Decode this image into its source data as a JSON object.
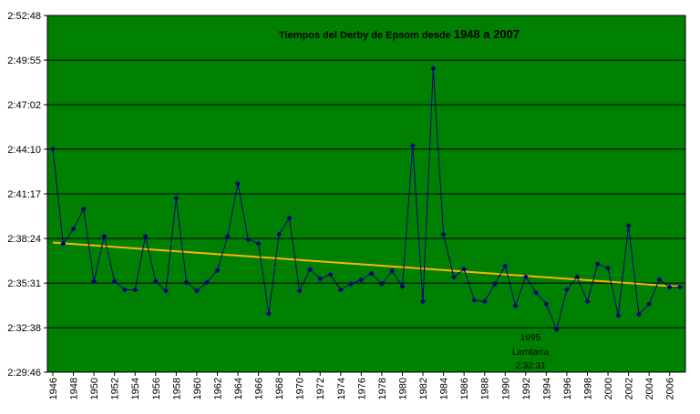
{
  "chart_data": {
    "type": "line",
    "title_part1": "Tiempos del Derby de Epsom desde ",
    "title_part2": "1948  a  2007",
    "y_tick_labels": [
      "2:29:46",
      "2:32:38",
      "2:35:31",
      "2:38:24",
      "2:41:17",
      "2:44:10",
      "2:47:02",
      "2:49:55",
      "2:52:48"
    ],
    "y_tick_seconds": [
      8986,
      9158,
      9331,
      9504,
      9677,
      9850,
      10022,
      10195,
      10368
    ],
    "ylim_seconds": [
      8986,
      10368
    ],
    "x_tick_labels": [
      "1946",
      "1948",
      "1950",
      "1952",
      "1954",
      "1956",
      "1958",
      "1960",
      "1962",
      "1964",
      "1966",
      "1968",
      "1970",
      "1972",
      "1974",
      "1976",
      "1978",
      "1980",
      "1982",
      "1984",
      "1986",
      "1988",
      "1990",
      "1992",
      "1994",
      "1996",
      "1998",
      "2000",
      "2002",
      "2004",
      "2006"
    ],
    "xlim": [
      1946,
      2007
    ],
    "grid": true,
    "colors": {
      "plot_background": "#008000",
      "series_line": "#000080",
      "trend_line": "#FFB400",
      "gridline": "#000000"
    },
    "series": [
      {
        "points": [
          [
            1946,
            9850
          ],
          [
            1947,
            9484
          ],
          [
            1948,
            9541
          ],
          [
            1949,
            9618
          ],
          [
            1950,
            9338
          ],
          [
            1951,
            9512
          ],
          [
            1952,
            9338
          ],
          [
            1953,
            9305
          ],
          [
            1954,
            9305
          ],
          [
            1955,
            9512
          ],
          [
            1956,
            9338
          ],
          [
            1957,
            9301
          ],
          [
            1958,
            9660
          ],
          [
            1959,
            9334
          ],
          [
            1960,
            9301
          ],
          [
            1961,
            9334
          ],
          [
            1962,
            9380
          ],
          [
            1963,
            9512
          ],
          [
            1964,
            9716
          ],
          [
            1965,
            9500
          ],
          [
            1966,
            9484
          ],
          [
            1967,
            9213
          ],
          [
            1968,
            9520
          ],
          [
            1969,
            9583
          ],
          [
            1970,
            9301
          ],
          [
            1971,
            9383
          ],
          [
            1972,
            9348
          ],
          [
            1973,
            9364
          ],
          [
            1974,
            9305
          ],
          [
            1975,
            9328
          ],
          [
            1976,
            9344
          ],
          [
            1977,
            9368
          ],
          [
            1978,
            9328
          ],
          [
            1979,
            9378
          ],
          [
            1980,
            9318
          ],
          [
            1981,
            9864
          ],
          [
            1982,
            9260
          ],
          [
            1983,
            10162
          ],
          [
            1984,
            9520
          ],
          [
            1985,
            9354
          ],
          [
            1986,
            9385
          ],
          [
            1987,
            9265
          ],
          [
            1988,
            9260
          ],
          [
            1989,
            9328
          ],
          [
            1990,
            9397
          ],
          [
            1991,
            9243
          ],
          [
            1992,
            9355
          ],
          [
            1993,
            9294
          ],
          [
            1994,
            9250
          ],
          [
            1995,
            9151
          ],
          [
            1996,
            9306
          ],
          [
            1997,
            9355
          ],
          [
            1998,
            9260
          ],
          [
            1999,
            9405
          ],
          [
            2000,
            9389
          ],
          [
            2001,
            9206
          ],
          [
            2002,
            9553
          ],
          [
            2003,
            9210
          ],
          [
            2004,
            9250
          ],
          [
            2005,
            9345
          ],
          [
            2006,
            9315
          ],
          [
            2007,
            9315
          ]
        ]
      },
      {
        "type": "trend",
        "points": [
          [
            1946,
            9488
          ],
          [
            2007,
            9317
          ]
        ]
      }
    ],
    "annotation": {
      "year": 1995,
      "lines": [
        "1995",
        "Lamtarra",
        "2:32:31"
      ]
    }
  }
}
